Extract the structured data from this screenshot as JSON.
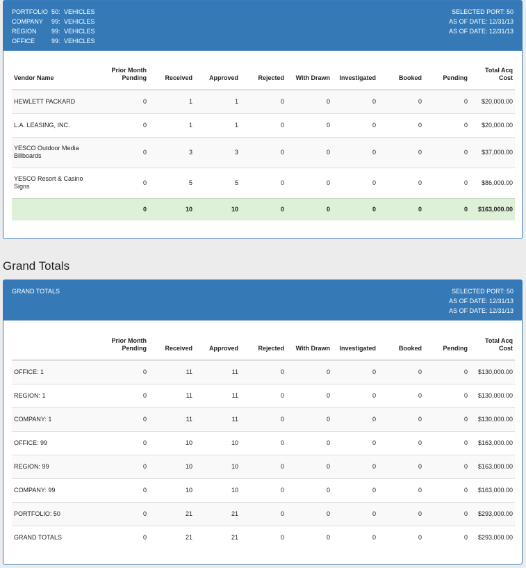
{
  "panel1": {
    "header": {
      "rows": [
        {
          "key": "PORTFOLIO",
          "num": "50:",
          "val": "VEHICLES"
        },
        {
          "key": "COMPANY",
          "num": "99:",
          "val": "VEHICLES"
        },
        {
          "key": "REGION",
          "num": "99:",
          "val": "VEHICLES"
        },
        {
          "key": "OFFICE",
          "num": "99:",
          "val": "VEHICLES"
        }
      ],
      "right": [
        "SELECTED PORT: 50",
        "AS OF DATE: 12/31/13",
        "AS OF DATE: 12/31/13"
      ]
    },
    "columns": [
      "Vendor Name",
      "Prior Month Pending",
      "Received",
      "Approved",
      "Rejected",
      "With Drawn",
      "Investigated",
      "Booked",
      "Pending",
      "Total Acq Cost"
    ],
    "rows": [
      [
        "HEWLETT PACKARD",
        "0",
        "1",
        "1",
        "0",
        "0",
        "0",
        "0",
        "0",
        "$20,000.00"
      ],
      [
        "L.A. LEASING, INC.",
        "0",
        "1",
        "1",
        "0",
        "0",
        "0",
        "0",
        "0",
        "$20,000.00"
      ],
      [
        "YESCO Outdoor Media Billboards",
        "0",
        "3",
        "3",
        "0",
        "0",
        "0",
        "0",
        "0",
        "$37,000.00"
      ],
      [
        "YESCO Resort & Casino Signs",
        "0",
        "5",
        "5",
        "0",
        "0",
        "0",
        "0",
        "0",
        "$86,000.00"
      ]
    ],
    "total": [
      "",
      "0",
      "10",
      "10",
      "0",
      "0",
      "0",
      "0",
      "0",
      "$163,000.00"
    ]
  },
  "grand_title": "Grand Totals",
  "panel2": {
    "header": {
      "left": "GRAND TOTALS",
      "right": [
        "SELECTED PORT: 50",
        "AS OF DATE: 12/31/13",
        "AS OF DATE: 12/31/13"
      ]
    },
    "columns": [
      "",
      "Prior Month Pending",
      "Received",
      "Approved",
      "Rejected",
      "With Drawn",
      "Investigated",
      "Booked",
      "Pending",
      "Total Acq Cost"
    ],
    "rows": [
      [
        "OFFICE: 1",
        "0",
        "11",
        "11",
        "0",
        "0",
        "0",
        "0",
        "0",
        "$130,000.00"
      ],
      [
        "REGION: 1",
        "0",
        "11",
        "11",
        "0",
        "0",
        "0",
        "0",
        "0",
        "$130,000.00"
      ],
      [
        "COMPANY: 1",
        "0",
        "11",
        "11",
        "0",
        "0",
        "0",
        "0",
        "0",
        "$130,000.00"
      ],
      [
        "OFFICE: 99",
        "0",
        "10",
        "10",
        "0",
        "0",
        "0",
        "0",
        "0",
        "$163,000.00"
      ],
      [
        "REGION: 99",
        "0",
        "10",
        "10",
        "0",
        "0",
        "0",
        "0",
        "0",
        "$163,000.00"
      ],
      [
        "COMPANY: 99",
        "0",
        "10",
        "10",
        "0",
        "0",
        "0",
        "0",
        "0",
        "$163,000.00"
      ],
      [
        "PORTFOLIO: 50",
        "0",
        "21",
        "21",
        "0",
        "0",
        "0",
        "0",
        "0",
        "$293,000.00"
      ],
      [
        "GRAND TOTALS",
        "0",
        "21",
        "21",
        "0",
        "0",
        "0",
        "0",
        "0",
        "$293,000.00"
      ]
    ]
  },
  "colors": {
    "header_bg": "#357ab7",
    "total_row_bg": "#dff0d8",
    "page_bg": "#ececec"
  }
}
